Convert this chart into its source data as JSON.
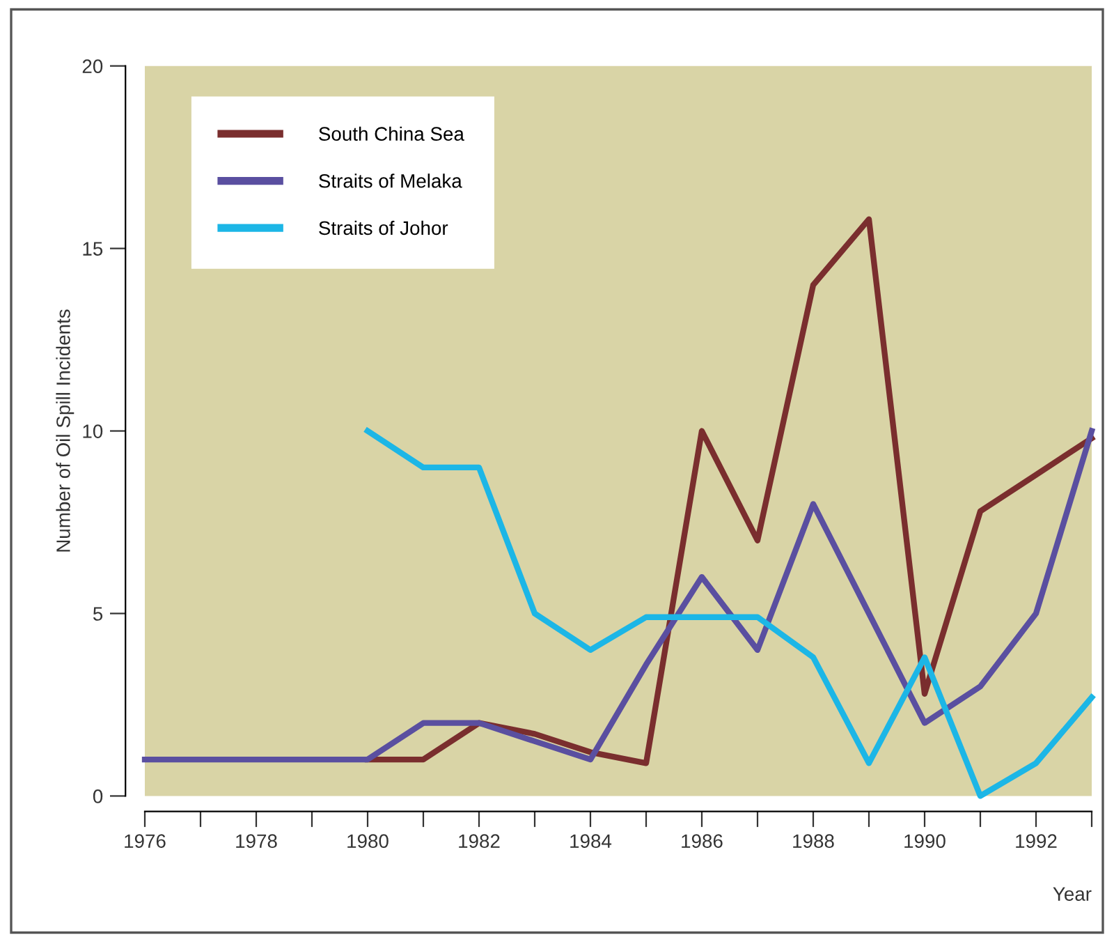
{
  "chart_data": {
    "type": "line",
    "xlabel": "Year",
    "ylabel": "Number of Oil Spill Incidents",
    "xlim": [
      1976,
      1993
    ],
    "ylim": [
      0,
      20
    ],
    "xticks": [
      1976,
      {
        "value": 1977,
        "label": null
      },
      1978,
      {
        "value": 1979,
        "label": null
      },
      1980,
      {
        "value": 1981,
        "label": null
      },
      1982,
      {
        "value": 1983,
        "label": null
      },
      1984,
      {
        "value": 1985,
        "label": null
      },
      1986,
      {
        "value": 1987,
        "label": null
      },
      1988,
      {
        "value": 1989,
        "label": null
      },
      1990,
      {
        "value": 1991,
        "label": null
      },
      1992,
      {
        "value": 1993,
        "label": null
      }
    ],
    "yticks": [
      0,
      5,
      10,
      15,
      20
    ],
    "grid": false,
    "legend": "top left",
    "marker": "none",
    "line_style": "solid",
    "series": [
      {
        "name": "South China Sea",
        "color": "#7a2e2e",
        "x": [
          1980,
          1981,
          1982,
          1983,
          1984,
          1985,
          1986,
          1987,
          1988,
          1989,
          1990,
          1991,
          1992,
          1993
        ],
        "values": [
          1,
          1,
          2,
          1.7,
          1.2,
          0.9,
          10,
          7,
          14,
          15.8,
          2.8,
          7.8,
          8.8,
          9.8
        ]
      },
      {
        "name": "Straits of Melaka",
        "color": "#5a4fa0",
        "x": [
          1976,
          1977,
          1978,
          1979,
          1980,
          1981,
          1982,
          1983,
          1984,
          1985,
          1986,
          1987,
          1988,
          1989,
          1990,
          1991,
          1992,
          1993
        ],
        "values": [
          1,
          1,
          1,
          1,
          1,
          2,
          2,
          1.5,
          1,
          3.6,
          6,
          4,
          8,
          5,
          2,
          3,
          5,
          10
        ]
      },
      {
        "name": "Straits of Johor",
        "color": "#1cb6e6",
        "x": [
          1980,
          1981,
          1982,
          1983,
          1984,
          1985,
          1986,
          1987,
          1988,
          1989,
          1990,
          1991,
          1992,
          1993
        ],
        "values": [
          10,
          9,
          9,
          5,
          4,
          4.9,
          4.9,
          4.9,
          3.8,
          0.9,
          3.8,
          0,
          0.9,
          2.7
        ]
      }
    ]
  }
}
